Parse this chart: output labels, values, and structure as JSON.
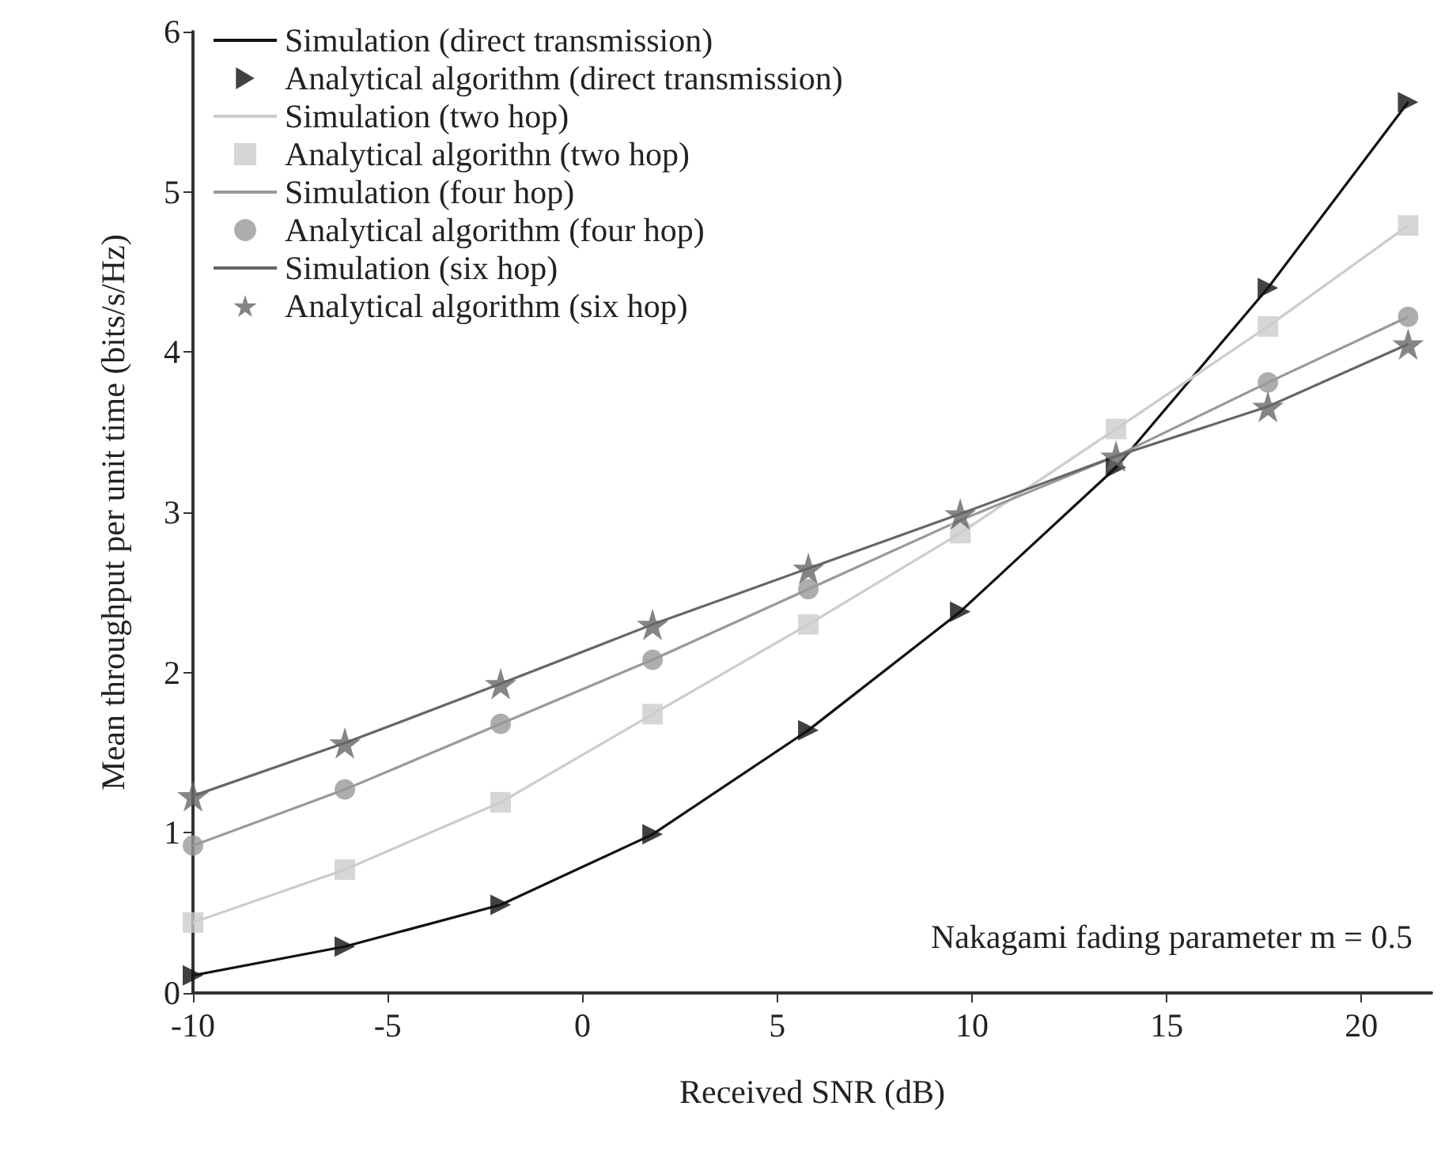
{
  "chart_data": {
    "type": "line",
    "xlabel": "Received SNR (dB)",
    "ylabel": "Mean throughput per unit time (bits/s/Hz)",
    "x": [
      -10,
      -6.1,
      -2.1,
      1.8,
      5.8,
      9.7,
      13.7,
      17.6,
      21.2
    ],
    "xlim": [
      -10,
      21.8
    ],
    "xticks": [
      -10,
      -5,
      0,
      5,
      10,
      15,
      20
    ],
    "ylim": [
      0,
      6
    ],
    "yticks": [
      0,
      1,
      2,
      3,
      4,
      5,
      6
    ],
    "grid": false,
    "legend": "top left",
    "annotations": [
      "Nakagami fading parameter m = 0.5"
    ],
    "series": [
      {
        "name": "Simulation (direct transmission)",
        "marker": "none",
        "color": "#111111",
        "values": [
          0.11,
          0.29,
          0.55,
          0.99,
          1.64,
          2.38,
          3.28,
          4.4,
          5.56
        ]
      },
      {
        "name": "Analytical algorithm (direct transmission)",
        "type": "scatter",
        "marker": "triangle",
        "color": "#111111",
        "values": [
          0.11,
          0.29,
          0.55,
          0.99,
          1.64,
          2.38,
          3.28,
          4.4,
          5.56
        ]
      },
      {
        "name": "Simulation (two hop)",
        "marker": "none",
        "color": "#cccccc",
        "values": [
          0.44,
          0.77,
          1.19,
          1.74,
          2.3,
          2.87,
          3.52,
          4.16,
          4.79
        ]
      },
      {
        "name": "Analytical algorithn (two hop)",
        "type": "scatter",
        "marker": "square",
        "color": "#cccccc",
        "values": [
          0.44,
          0.77,
          1.19,
          1.74,
          2.3,
          2.87,
          3.52,
          4.16,
          4.79
        ]
      },
      {
        "name": "Simulation (four hop)",
        "marker": "none",
        "color": "#999999",
        "values": [
          0.92,
          1.27,
          1.68,
          2.08,
          2.52,
          2.95,
          3.35,
          3.81,
          4.22
        ]
      },
      {
        "name": "Analytical algorithm (four hop)",
        "type": "scatter",
        "marker": "circle",
        "color": "#999999",
        "values": [
          0.92,
          1.27,
          1.68,
          2.08,
          2.52,
          null,
          null,
          3.81,
          4.22
        ]
      },
      {
        "name": "Simulation (six hop)",
        "marker": "none",
        "color": "#666666",
        "values": [
          1.23,
          1.56,
          1.93,
          2.3,
          2.65,
          2.99,
          3.35,
          3.66,
          4.05
        ]
      },
      {
        "name": "Analytical algorithm (six hop)",
        "type": "scatter",
        "marker": "star",
        "color": "#666666",
        "values": [
          1.23,
          1.56,
          1.93,
          2.3,
          2.65,
          2.99,
          3.35,
          3.66,
          4.05
        ]
      }
    ]
  }
}
